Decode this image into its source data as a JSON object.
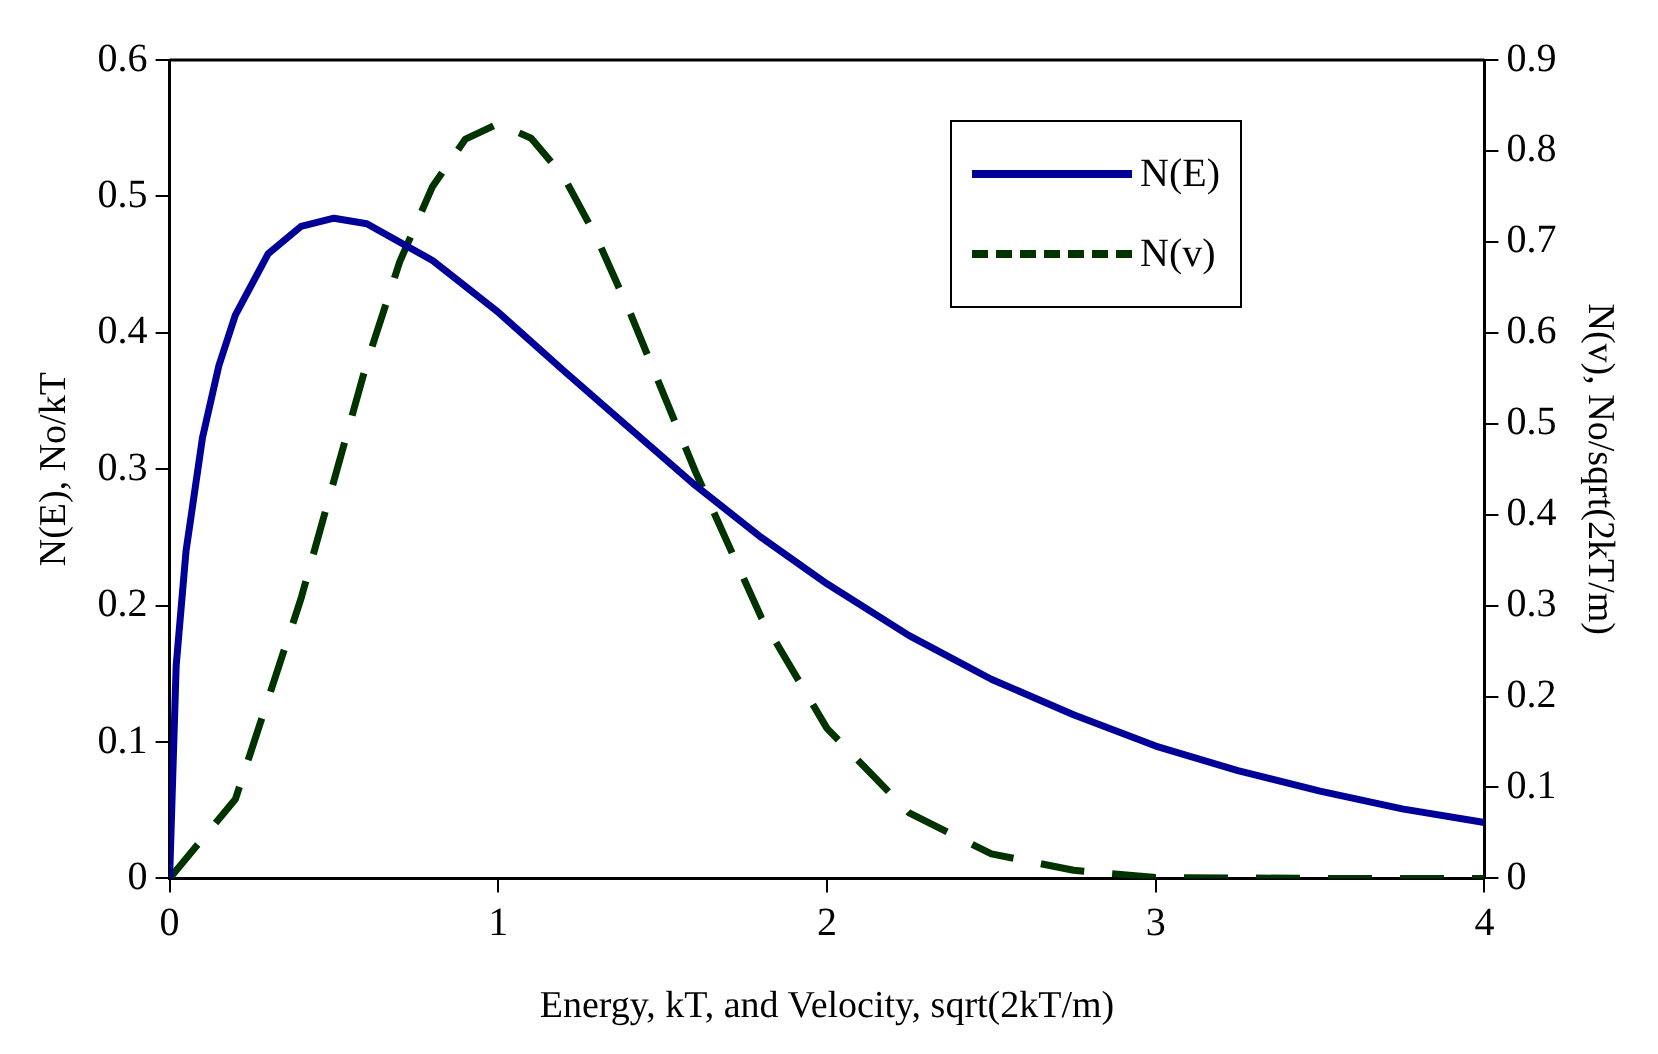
{
  "chart_data": {
    "type": "line",
    "xlabel": "Energy, kT, and Velocity, sqrt(2kT/m)",
    "ylabel": "N(E), No/kT",
    "y2label": "N(v), No/sqrt(2kT/m)",
    "xlim": [
      0,
      4
    ],
    "xticks": [
      0,
      1,
      2,
      3,
      4
    ],
    "ylim": [
      0,
      0.6
    ],
    "yticks": [
      0,
      0.1,
      0.2,
      0.3,
      0.4,
      0.5,
      0.6
    ],
    "y2lim": [
      0,
      0.9
    ],
    "y2ticks": [
      0,
      0.1,
      0.2,
      0.3,
      0.4,
      0.5,
      0.6,
      0.7,
      0.8,
      0.9
    ],
    "grid": false,
    "legend": "top right",
    "marker": "none",
    "series": [
      {
        "name": "N(E)",
        "color": "#000099",
        "line_style": "solid",
        "x": [
          0,
          0.02,
          0.05,
          0.1,
          0.15,
          0.2,
          0.3,
          0.4,
          0.5,
          0.6,
          0.8,
          1.0,
          1.2,
          1.4,
          1.6,
          1.8,
          2.0,
          2.25,
          2.5,
          2.75,
          3.0,
          3.25,
          3.5,
          3.75,
          4.0
        ],
        "values": [
          0,
          0.156,
          0.24,
          0.323,
          0.376,
          0.413,
          0.458,
          0.478,
          0.484,
          0.48,
          0.453,
          0.415,
          0.372,
          0.33,
          0.288,
          0.25,
          0.216,
          0.178,
          0.146,
          0.12,
          0.097,
          0.079,
          0.064,
          0.051,
          0.041
        ]
      },
      {
        "name": "N(v)",
        "color": "#003300",
        "line_style": "dashed",
        "axis": "y2",
        "x": [
          0,
          0.2,
          0.4,
          0.6,
          0.7,
          0.8,
          0.9,
          1.0,
          1.1,
          1.2,
          1.3,
          1.4,
          1.6,
          1.8,
          2.0,
          2.25,
          2.5,
          2.75,
          3.0,
          3.5,
          4.0
        ],
        "values": [
          0,
          0.087,
          0.308,
          0.567,
          0.678,
          0.761,
          0.813,
          0.83,
          0.814,
          0.771,
          0.704,
          0.623,
          0.447,
          0.287,
          0.165,
          0.072,
          0.027,
          0.009,
          0.001,
          0,
          0
        ]
      }
    ]
  }
}
